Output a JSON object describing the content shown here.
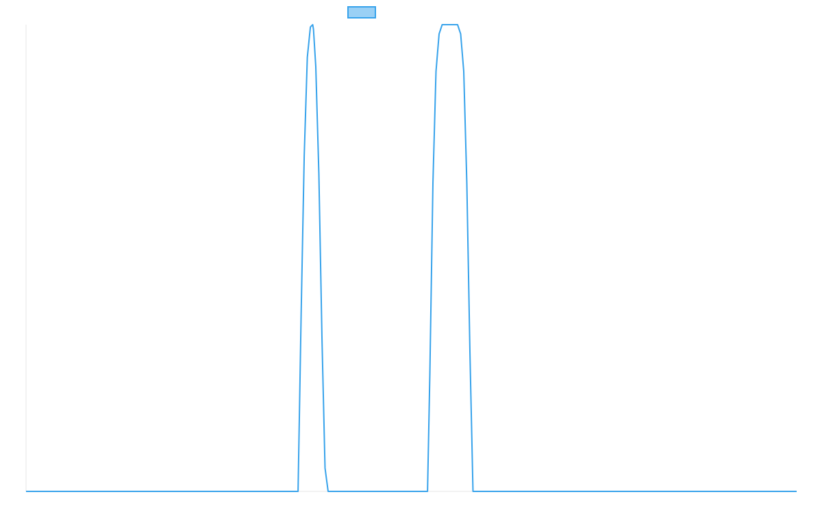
{
  "chart_data": {
    "type": "line",
    "title": "",
    "xlabel": "",
    "ylabel": "",
    "legend": {
      "placement": "top-center",
      "entries": [
        {
          "name": "",
          "color": "#36a2eb"
        }
      ]
    },
    "grid": false,
    "xlim": [
      0,
      1
    ],
    "ylim": [
      0,
      1
    ],
    "series": [
      {
        "name": "",
        "color": "#36a2eb",
        "fill": "#9ad0f5",
        "x": [
          0.0,
          0.353,
          0.357,
          0.361,
          0.365,
          0.369,
          0.372,
          0.373,
          0.376,
          0.38,
          0.384,
          0.388,
          0.392,
          0.45,
          0.521,
          0.524,
          0.528,
          0.532,
          0.536,
          0.54,
          0.544,
          0.548,
          0.552,
          0.556,
          0.56,
          0.564,
          0.568,
          0.572,
          0.576,
          0.58,
          1.0
        ],
        "y": [
          0.0,
          0.0,
          0.38,
          0.72,
          0.93,
          0.995,
          1.0,
          0.99,
          0.91,
          0.68,
          0.33,
          0.05,
          0.0,
          0.0,
          0.0,
          0.25,
          0.66,
          0.9,
          0.98,
          1.0,
          1.0,
          1.0,
          1.0,
          1.0,
          1.0,
          0.98,
          0.9,
          0.66,
          0.3,
          0.0,
          0.0
        ]
      }
    ]
  }
}
